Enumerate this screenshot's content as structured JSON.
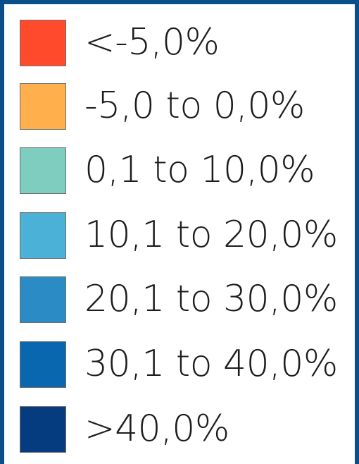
{
  "legend": {
    "items": [
      {
        "label": "<-5,0%",
        "color": "#ff4b2b"
      },
      {
        "label": "-5,0 to 0,0%",
        "color": "#ffb04d"
      },
      {
        "label": "0,1 to 10,0%",
        "color": "#7fcdbf"
      },
      {
        "label": "10,1 to 20,0%",
        "color": "#4bb1d6"
      },
      {
        "label": "20,1 to 30,0%",
        "color": "#2b8bc4"
      },
      {
        "label": "30,1 to 40,0%",
        "color": "#0967b0"
      },
      {
        "label": ">40,0%",
        "color": "#053c80"
      }
    ]
  }
}
